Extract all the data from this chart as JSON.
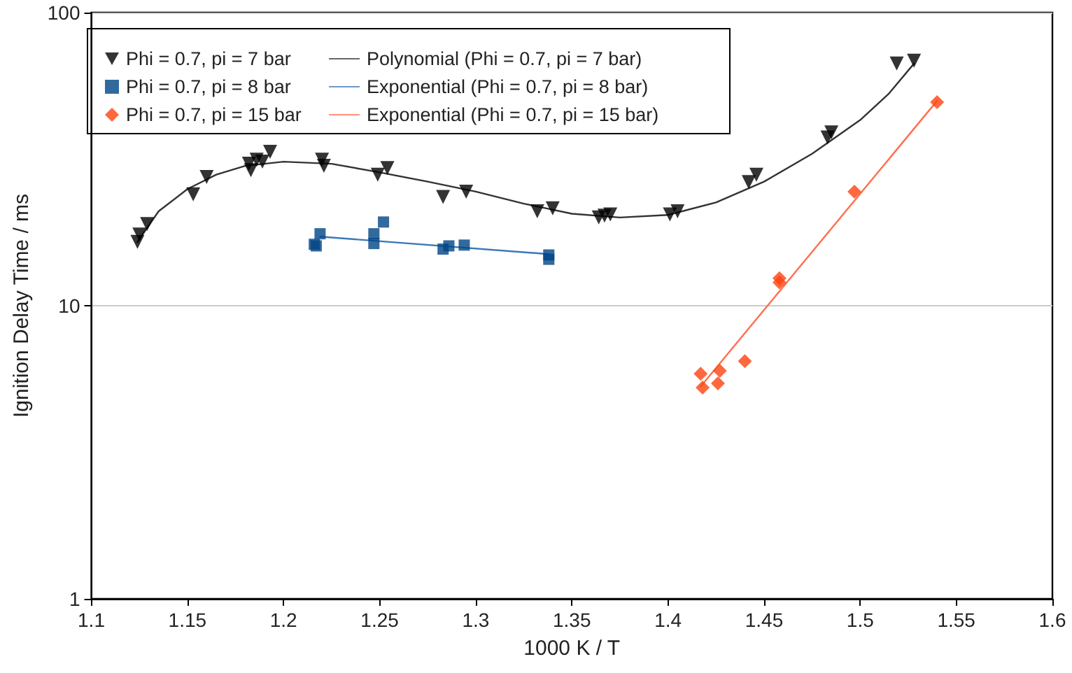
{
  "chart_data": {
    "type": "scatter",
    "xlabel": "1000 K / T",
    "ylabel": "Ignition Delay Time / ms",
    "xlim": [
      1.1,
      1.6
    ],
    "xticks": [
      1.1,
      1.15,
      1.2,
      1.25,
      1.3,
      1.35,
      1.4,
      1.45,
      1.5,
      1.55,
      1.6
    ],
    "ylim": [
      1,
      100
    ],
    "yticks": [
      1,
      10,
      100
    ],
    "log": "y",
    "grid": "y",
    "legend": "top left",
    "series": [
      {
        "name": "Phi = 0.7, pi = 7 bar",
        "marker": "triangle",
        "color": "#000000",
        "x": [
          1.124,
          1.125,
          1.129,
          1.153,
          1.16,
          1.182,
          1.183,
          1.186,
          1.189,
          1.193,
          1.22,
          1.221,
          1.249,
          1.254,
          1.283,
          1.295,
          1.332,
          1.34,
          1.364,
          1.367,
          1.37,
          1.401,
          1.405,
          1.442,
          1.446,
          1.483,
          1.485,
          1.519,
          1.528
        ],
        "values": [
          16.5,
          17.5,
          19,
          24,
          27.5,
          30.5,
          29,
          31.5,
          31,
          33.5,
          31.5,
          30,
          28,
          29.5,
          23.5,
          24.5,
          21,
          21.5,
          20,
          20.3,
          20.5,
          20.5,
          21,
          26.4,
          28,
          37.5,
          39,
          67,
          68.5
        ]
      },
      {
        "name": "Phi = 0.7, pi = 8 bar",
        "marker": "square",
        "color": "#004586",
        "x": [
          1.216,
          1.217,
          1.219,
          1.247,
          1.247,
          1.252,
          1.283,
          1.286,
          1.294,
          1.338,
          1.338
        ],
        "values": [
          16.2,
          16,
          17.6,
          16.3,
          17.6,
          19.3,
          15.6,
          16,
          16.1,
          14.9,
          14.4
        ]
      },
      {
        "name": "Phi = 0.7, pi = 15 bar",
        "marker": "diamond",
        "color": "#ff420e",
        "x": [
          1.417,
          1.418,
          1.426,
          1.427,
          1.44,
          1.458,
          1.458,
          1.497,
          1.54
        ],
        "values": [
          5.86,
          5.26,
          5.43,
          6.0,
          6.47,
          12.4,
          12.0,
          24.5,
          49.5
        ]
      },
      {
        "name": "Polynomial (Phi = 0.7, pi = 7 bar)",
        "type": "line",
        "marker": "none",
        "line_style": "solid",
        "color": "#333333",
        "x": [
          1.124,
          1.135,
          1.15,
          1.165,
          1.18,
          1.2,
          1.225,
          1.25,
          1.275,
          1.3,
          1.325,
          1.35,
          1.375,
          1.4,
          1.425,
          1.45,
          1.475,
          1.5,
          1.515,
          1.528
        ],
        "values": [
          16.5,
          21,
          25,
          28,
          30,
          31,
          30.5,
          28.5,
          26.5,
          24.5,
          22.3,
          20.6,
          20,
          20.4,
          22.5,
          26.5,
          33,
          43,
          53,
          67
        ]
      },
      {
        "name": "Exponential (Phi = 0.7, pi = 8 bar)",
        "type": "line",
        "marker": "none",
        "line_style": "solid",
        "color": "#3b78b8",
        "x": [
          1.219,
          1.338
        ],
        "values": [
          17.2,
          15.0
        ]
      },
      {
        "name": "Exponential (Phi = 0.7, pi = 15 bar)",
        "type": "line",
        "marker": "none",
        "line_style": "solid",
        "color": "#ff6f4f",
        "x": [
          1.417,
          1.54
        ],
        "values": [
          5.3,
          50
        ]
      }
    ]
  }
}
